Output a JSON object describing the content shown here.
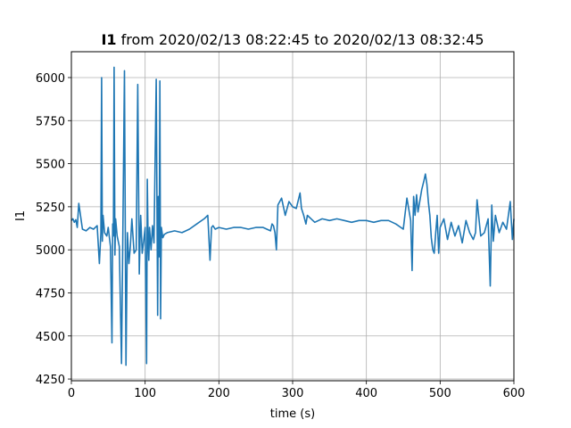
{
  "chart_data": {
    "type": "line",
    "title_variable": "I1",
    "title_rest": " from 2020/02/13 08:22:45 to 2020/02/13 08:32:45",
    "xlabel": "time (s)",
    "ylabel": "I1",
    "xlim": [
      0,
      600
    ],
    "ylim": [
      4240,
      6150
    ],
    "xticks": [
      0,
      100,
      200,
      300,
      400,
      500,
      600
    ],
    "yticks": [
      4250,
      4500,
      4750,
      5000,
      5250,
      5500,
      5750,
      6000
    ],
    "grid": true,
    "color": "#1f77b4",
    "series": [
      {
        "x": [
          0,
          2,
          4,
          6,
          8,
          10,
          15,
          20,
          25,
          30,
          35,
          38,
          40,
          41,
          42,
          43,
          45,
          48,
          50,
          53,
          55,
          56,
          57,
          58,
          59,
          60,
          62,
          65,
          68,
          70,
          72,
          74,
          76,
          78,
          80,
          82,
          85,
          88,
          90,
          92,
          93,
          94,
          96,
          98,
          100,
          102,
          103,
          104,
          105,
          106,
          108,
          110,
          112,
          115,
          117,
          118,
          119,
          120,
          121,
          122,
          124,
          126,
          130,
          140,
          150,
          160,
          170,
          180,
          185,
          188,
          190,
          192,
          195,
          200,
          210,
          220,
          230,
          240,
          250,
          260,
          270,
          272,
          274,
          276,
          278,
          280,
          285,
          290,
          295,
          300,
          305,
          310,
          312,
          315,
          318,
          320,
          325,
          330,
          340,
          350,
          360,
          370,
          380,
          390,
          400,
          410,
          420,
          430,
          440,
          450,
          455,
          460,
          462,
          464,
          466,
          468,
          470,
          475,
          478,
          480,
          482,
          484,
          486,
          488,
          490,
          492,
          494,
          496,
          498,
          500,
          505,
          510,
          515,
          520,
          525,
          530,
          535,
          540,
          545,
          548,
          550,
          555,
          560,
          565,
          568,
          570,
          572,
          575,
          580,
          585,
          590,
          595,
          598,
          600
        ],
        "y": [
          5170,
          5180,
          5160,
          5175,
          5130,
          5270,
          5120,
          5110,
          5130,
          5120,
          5140,
          4920,
          5100,
          6000,
          5050,
          5200,
          5100,
          5080,
          5130,
          5020,
          4460,
          5150,
          5080,
          6060,
          4970,
          5180,
          5080,
          5020,
          4340,
          5200,
          6040,
          4330,
          5100,
          4920,
          5020,
          5180,
          4980,
          5000,
          5960,
          4860,
          5050,
          5200,
          4980,
          5050,
          5130,
          4340,
          5410,
          5050,
          4940,
          5130,
          5000,
          5140,
          5040,
          5990,
          4620,
          5310,
          4960,
          5980,
          4600,
          5130,
          5070,
          5090,
          5100,
          5110,
          5100,
          5120,
          5150,
          5180,
          5200,
          4940,
          5130,
          5140,
          5120,
          5130,
          5120,
          5130,
          5130,
          5120,
          5130,
          5130,
          5110,
          5150,
          5140,
          5100,
          5000,
          5260,
          5300,
          5200,
          5280,
          5250,
          5240,
          5330,
          5240,
          5200,
          5150,
          5200,
          5180,
          5160,
          5180,
          5170,
          5180,
          5170,
          5160,
          5170,
          5170,
          5160,
          5170,
          5170,
          5150,
          5120,
          5300,
          5170,
          4880,
          5310,
          5200,
          5320,
          5220,
          5350,
          5400,
          5440,
          5380,
          5280,
          5200,
          5070,
          5000,
          4980,
          5100,
          5200,
          4980,
          5130,
          5180,
          5060,
          5160,
          5080,
          5140,
          5040,
          5170,
          5100,
          5060,
          5100,
          5290,
          5080,
          5100,
          5180,
          4790,
          5260,
          5050,
          5200,
          5100,
          5160,
          5120,
          5280,
          5060,
          5180
        ]
      }
    ]
  }
}
